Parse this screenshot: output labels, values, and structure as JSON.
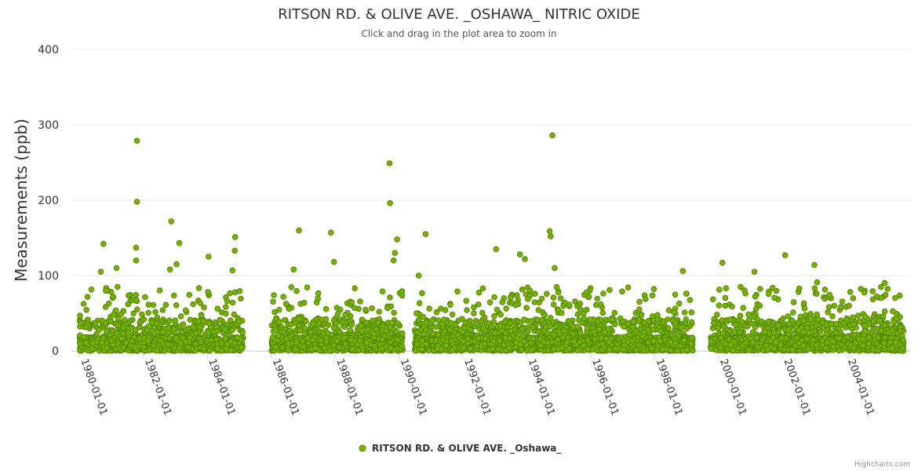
{
  "chart_data": {
    "type": "scatter",
    "title": "RITSON RD. & OLIVE AVE. _OSHAWA_ NITRIC OXIDE",
    "subtitle": "Click and drag in the plot area to zoom in",
    "ylabel": "Measurements (ppb)",
    "xlabel": "",
    "ylim": [
      0,
      400
    ],
    "yticks": [
      0,
      100,
      200,
      300,
      400
    ],
    "xlim": [
      "1979-10-01",
      "2005-12-31"
    ],
    "xticks": [
      "1980-01-01",
      "1982-01-01",
      "1984-01-01",
      "1986-01-01",
      "1988-01-01",
      "1990-01-01",
      "1992-01-01",
      "1994-01-01",
      "1996-01-01",
      "1998-01-01",
      "2000-01-01",
      "2002-01-01",
      "2004-01-01"
    ],
    "grid": "horizontal",
    "legend_position": "bottom-center",
    "marker_color": "#7cb000",
    "marker_stroke": "#4e8a00",
    "series": [
      {
        "name": "RITSON RD. & OLIVE AVE. _Oshawa_",
        "segments": [
          {
            "start": "1980-01-01",
            "end": "1985-02-15"
          },
          {
            "start": "1986-01-01",
            "end": "1990-02-15"
          },
          {
            "start": "1990-07-01",
            "end": "1999-03-15"
          },
          {
            "start": "1999-10-01",
            "end": "2005-10-15"
          }
        ],
        "notable_points": [
          {
            "x": "1980-10-01",
            "y": 142
          },
          {
            "x": "1980-09-01",
            "y": 105
          },
          {
            "x": "1981-03-01",
            "y": 110
          },
          {
            "x": "1981-10-20",
            "y": 279
          },
          {
            "x": "1981-10-20",
            "y": 198
          },
          {
            "x": "1981-10-10",
            "y": 137
          },
          {
            "x": "1981-10-10",
            "y": 120
          },
          {
            "x": "1982-11-15",
            "y": 172
          },
          {
            "x": "1983-02-15",
            "y": 143
          },
          {
            "x": "1983-01-15",
            "y": 115
          },
          {
            "x": "1982-11-01",
            "y": 108
          },
          {
            "x": "1984-01-15",
            "y": 125
          },
          {
            "x": "1984-11-15",
            "y": 151
          },
          {
            "x": "1984-11-10",
            "y": 133
          },
          {
            "x": "1984-10-15",
            "y": 107
          },
          {
            "x": "1986-11-15",
            "y": 160
          },
          {
            "x": "1986-09-15",
            "y": 108
          },
          {
            "x": "1987-11-15",
            "y": 157
          },
          {
            "x": "1987-12-20",
            "y": 118
          },
          {
            "x": "1989-09-15",
            "y": 249
          },
          {
            "x": "1989-09-20",
            "y": 196
          },
          {
            "x": "1989-12-10",
            "y": 148
          },
          {
            "x": "1989-11-15",
            "y": 130
          },
          {
            "x": "1989-11-01",
            "y": 120
          },
          {
            "x": "1990-08-15",
            "y": 100
          },
          {
            "x": "1990-11-01",
            "y": 155
          },
          {
            "x": "1993-01-15",
            "y": 135
          },
          {
            "x": "1993-10-15",
            "y": 128
          },
          {
            "x": "1993-12-10",
            "y": 122
          },
          {
            "x": "1994-10-20",
            "y": 286
          },
          {
            "x": "1994-09-20",
            "y": 159
          },
          {
            "x": "1994-10-01",
            "y": 152
          },
          {
            "x": "1994-11-15",
            "y": 110
          },
          {
            "x": "1998-11-20",
            "y": 106
          },
          {
            "x": "2000-02-15",
            "y": 117
          },
          {
            "x": "2001-02-15",
            "y": 105
          },
          {
            "x": "2002-02-01",
            "y": 127
          },
          {
            "x": "2003-01-01",
            "y": 114
          },
          {
            "x": "2003-02-01",
            "y": 91
          },
          {
            "x": "2004-02-01",
            "y": 60
          },
          {
            "x": "2005-03-15",
            "y": 90
          }
        ]
      }
    ]
  },
  "credits": "Highcharts.com"
}
